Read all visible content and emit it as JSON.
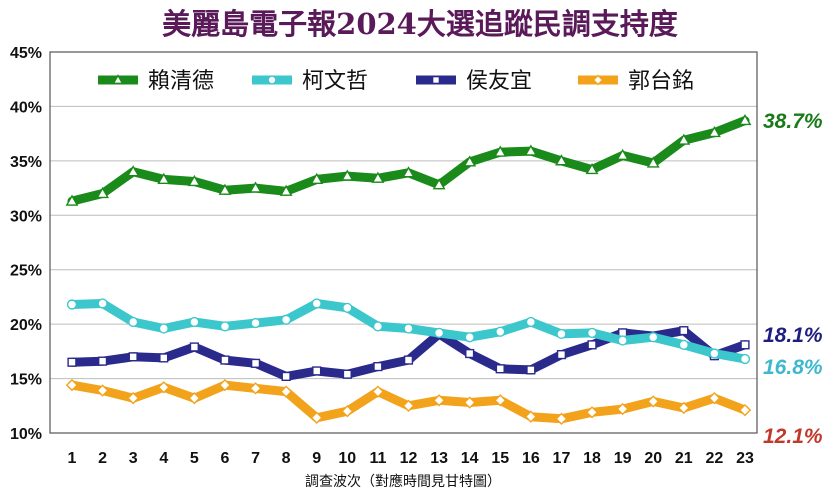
{
  "chart_data": {
    "type": "line",
    "title": "美麗島電子報2024大選追蹤民調支持度",
    "xlabel": "調查波次（對應時間見甘特圖）",
    "ylabel": "",
    "x": [
      "1",
      "2",
      "3",
      "4",
      "5",
      "6",
      "7",
      "8",
      "9",
      "10",
      "11",
      "12",
      "13",
      "14",
      "15",
      "16",
      "17",
      "18",
      "19",
      "20",
      "21",
      "22",
      "23"
    ],
    "ylim": [
      10,
      45
    ],
    "yticks": [
      "10%",
      "15%",
      "20%",
      "25%",
      "30%",
      "35%",
      "40%",
      "45%"
    ],
    "grid": true,
    "legend_position": "top",
    "series": [
      {
        "name": "賴清德",
        "color": "#1a8a1a",
        "marker": "triangle",
        "end_label": "38.7%",
        "values": [
          31.3,
          32.0,
          34.0,
          33.3,
          33.1,
          32.3,
          32.5,
          32.2,
          33.3,
          33.6,
          33.4,
          33.9,
          32.8,
          34.9,
          35.8,
          35.9,
          35.0,
          34.2,
          35.5,
          34.8,
          36.9,
          37.6,
          38.7
        ]
      },
      {
        "name": "柯文哲",
        "color": "#3cc7cc",
        "marker": "circle",
        "end_label": "16.8%",
        "values": [
          21.8,
          21.9,
          20.2,
          19.6,
          20.2,
          19.8,
          20.1,
          20.4,
          21.9,
          21.5,
          19.8,
          19.6,
          19.2,
          18.8,
          19.3,
          20.2,
          19.1,
          19.2,
          18.5,
          18.8,
          18.1,
          17.3,
          16.8
        ]
      },
      {
        "name": "侯友宜",
        "color": "#2a2a8c",
        "marker": "square",
        "end_label": "18.1%",
        "values": [
          16.5,
          16.6,
          17.0,
          16.9,
          17.9,
          16.7,
          16.4,
          15.2,
          15.7,
          15.4,
          16.1,
          16.7,
          19.1,
          17.3,
          15.9,
          15.8,
          17.2,
          18.1,
          19.2,
          18.9,
          19.4,
          17.1,
          18.1
        ]
      },
      {
        "name": "郭台銘",
        "color": "#f2a31b",
        "marker": "diamond",
        "end_label": "12.1%",
        "values": [
          14.4,
          13.9,
          13.2,
          14.2,
          13.2,
          14.4,
          14.1,
          13.8,
          11.4,
          12.0,
          13.8,
          12.5,
          13.0,
          12.8,
          13.0,
          11.5,
          11.3,
          11.9,
          12.2,
          12.9,
          12.3,
          13.2,
          12.1
        ]
      }
    ],
    "end_label_colors": [
      "#1a7a1a",
      "#3db8cc",
      "#1e1e7e",
      "#c0392b"
    ]
  }
}
